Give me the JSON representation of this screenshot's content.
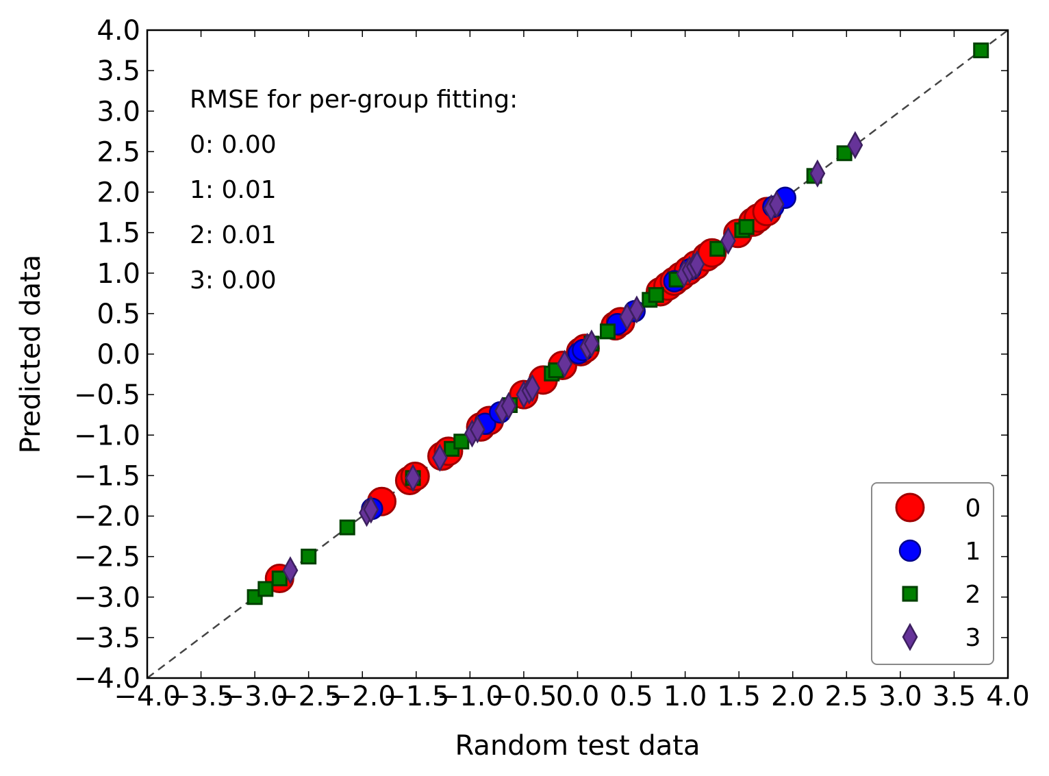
{
  "chart_data": {
    "type": "scatter",
    "xlabel": "Random test data",
    "ylabel": "Predicted data",
    "xlim": [
      -4.0,
      4.0
    ],
    "ylim": [
      -4.0,
      4.0
    ],
    "x_ticks": [
      "−4.0",
      "−3.5",
      "−3.0",
      "−2.5",
      "−2.0",
      "−1.5",
      "−1.0",
      "−0.5",
      "0.0",
      "0.5",
      "1.0",
      "1.5",
      "2.0",
      "2.5",
      "3.0",
      "3.5",
      "4.0"
    ],
    "y_ticks": [
      "4.0",
      "3.5",
      "3.0",
      "2.5",
      "2.0",
      "1.5",
      "1.0",
      "0.5",
      "0.0",
      "−0.5",
      "−1.0",
      "−1.5",
      "−2.0",
      "−2.5",
      "−3.0",
      "−3.5",
      "−4.0"
    ],
    "grid": false,
    "reference_line": "y = x (dashed gray)",
    "legend_position": "lower-right",
    "annotations": [
      "RMSE for per-group fitting:",
      "0: 0.00",
      "1: 0.01",
      "2: 0.01",
      "3: 0.00"
    ],
    "series": [
      {
        "name": "0",
        "marker": "circle-large",
        "color": "#ff0000",
        "edge_color": "#a00000",
        "x": [
          -2.77,
          -1.82,
          -1.56,
          -1.51,
          -1.26,
          -1.2,
          -0.9,
          -0.82,
          -0.5,
          -0.32,
          -0.14,
          0.03,
          0.07,
          0.35,
          0.4,
          0.77,
          0.84,
          0.9,
          0.96,
          1.03,
          1.1,
          1.2,
          1.25,
          1.49,
          1.63,
          1.68,
          1.76
        ],
        "y": [
          -2.77,
          -1.82,
          -1.56,
          -1.51,
          -1.26,
          -1.2,
          -0.9,
          -0.82,
          -0.5,
          -0.32,
          -0.14,
          0.03,
          0.07,
          0.35,
          0.4,
          0.77,
          0.84,
          0.9,
          0.96,
          1.03,
          1.1,
          1.2,
          1.25,
          1.49,
          1.63,
          1.68,
          1.76
        ]
      },
      {
        "name": "1",
        "marker": "circle",
        "color": "#0000ff",
        "edge_color": "#00008b",
        "x": [
          -1.91,
          -0.86,
          -0.72,
          0.01,
          0.05,
          0.37,
          0.53,
          0.9,
          1.05,
          1.82,
          1.93
        ],
        "y": [
          -1.91,
          -0.86,
          -0.72,
          0.01,
          0.05,
          0.37,
          0.53,
          0.9,
          1.05,
          1.82,
          1.93
        ]
      },
      {
        "name": "2",
        "marker": "square",
        "color": "#007f00",
        "edge_color": "#004000",
        "x": [
          -3.0,
          -2.9,
          -2.77,
          -2.5,
          -2.14,
          -1.53,
          -1.17,
          -1.08,
          -0.63,
          -0.24,
          -0.2,
          0.13,
          0.28,
          0.67,
          0.73,
          0.92,
          1.3,
          1.53,
          1.57,
          2.2,
          2.48,
          3.75
        ],
        "y": [
          -3.0,
          -2.9,
          -2.77,
          -2.5,
          -2.14,
          -1.53,
          -1.17,
          -1.08,
          -0.63,
          -0.24,
          -0.2,
          0.13,
          0.28,
          0.67,
          0.73,
          0.92,
          1.3,
          1.53,
          1.57,
          2.2,
          2.48,
          3.75
        ]
      },
      {
        "name": "3",
        "marker": "thin-diamond",
        "color": "#663399",
        "edge_color": "#3c1f5f",
        "x": [
          -2.67,
          -1.96,
          -1.92,
          -1.53,
          -1.28,
          -0.98,
          -0.93,
          -0.7,
          -0.64,
          -0.5,
          -0.45,
          -0.42,
          -0.12,
          0.09,
          0.13,
          0.46,
          0.55,
          0.99,
          1.04,
          1.08,
          1.11,
          1.4,
          1.8,
          1.85,
          2.23,
          2.58
        ],
        "y": [
          -2.67,
          -1.96,
          -1.92,
          -1.53,
          -1.28,
          -0.98,
          -0.93,
          -0.7,
          -0.64,
          -0.5,
          -0.45,
          -0.42,
          -0.12,
          0.09,
          0.13,
          0.46,
          0.55,
          0.99,
          1.04,
          1.08,
          1.11,
          1.4,
          1.8,
          1.85,
          2.23,
          2.58
        ]
      }
    ]
  }
}
